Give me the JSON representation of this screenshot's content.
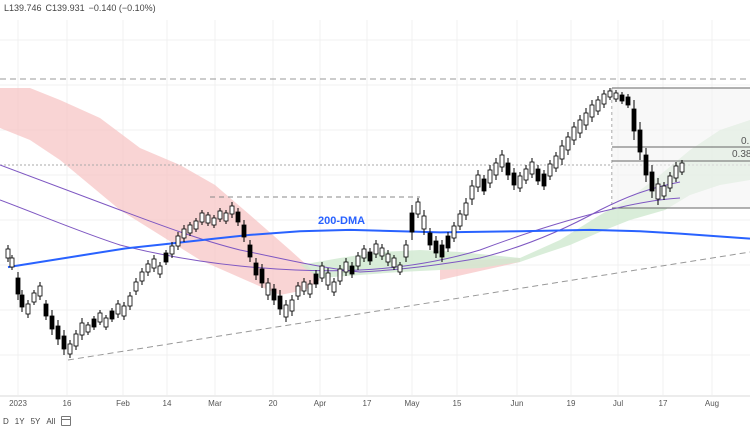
{
  "header": {
    "low": "L139.746",
    "close": "C139.931",
    "change": "−0.140 (−0.10%)"
  },
  "range_buttons": [
    "D",
    "1Y",
    "5Y",
    "All"
  ],
  "icons": {
    "calendar": "calendar-icon"
  },
  "colors": {
    "up": "#ffffff",
    "down": "#000000",
    "cloud_bear": "#f7c6c6",
    "cloud_bull": "#cfe8cf",
    "dma200": "#2962ff",
    "ma_purple": "#7e57c2"
  },
  "chart_data": {
    "type": "candlestick",
    "x_tick_labels": [
      "2023",
      "16",
      "Feb",
      "14",
      "Mar",
      "20",
      "Apr",
      "17",
      "May",
      "15",
      "Jun",
      "19",
      "Jul",
      "17",
      "Aug"
    ],
    "annotations": {
      "dma_label": "200-DMA",
      "fib_labels": [
        "0.",
        "0.38"
      ]
    },
    "series": [
      {
        "name": "200-DMA",
        "values": [
          131.5,
          132.3,
          133.0,
          133.4,
          133.8,
          134.1,
          134.4,
          134.5,
          134.4,
          134.3,
          134.4,
          134.5,
          134.4,
          134.2,
          133.8
        ]
      }
    ],
    "grid": true,
    "price_scale_visible": false,
    "ohlc_visible": true
  }
}
